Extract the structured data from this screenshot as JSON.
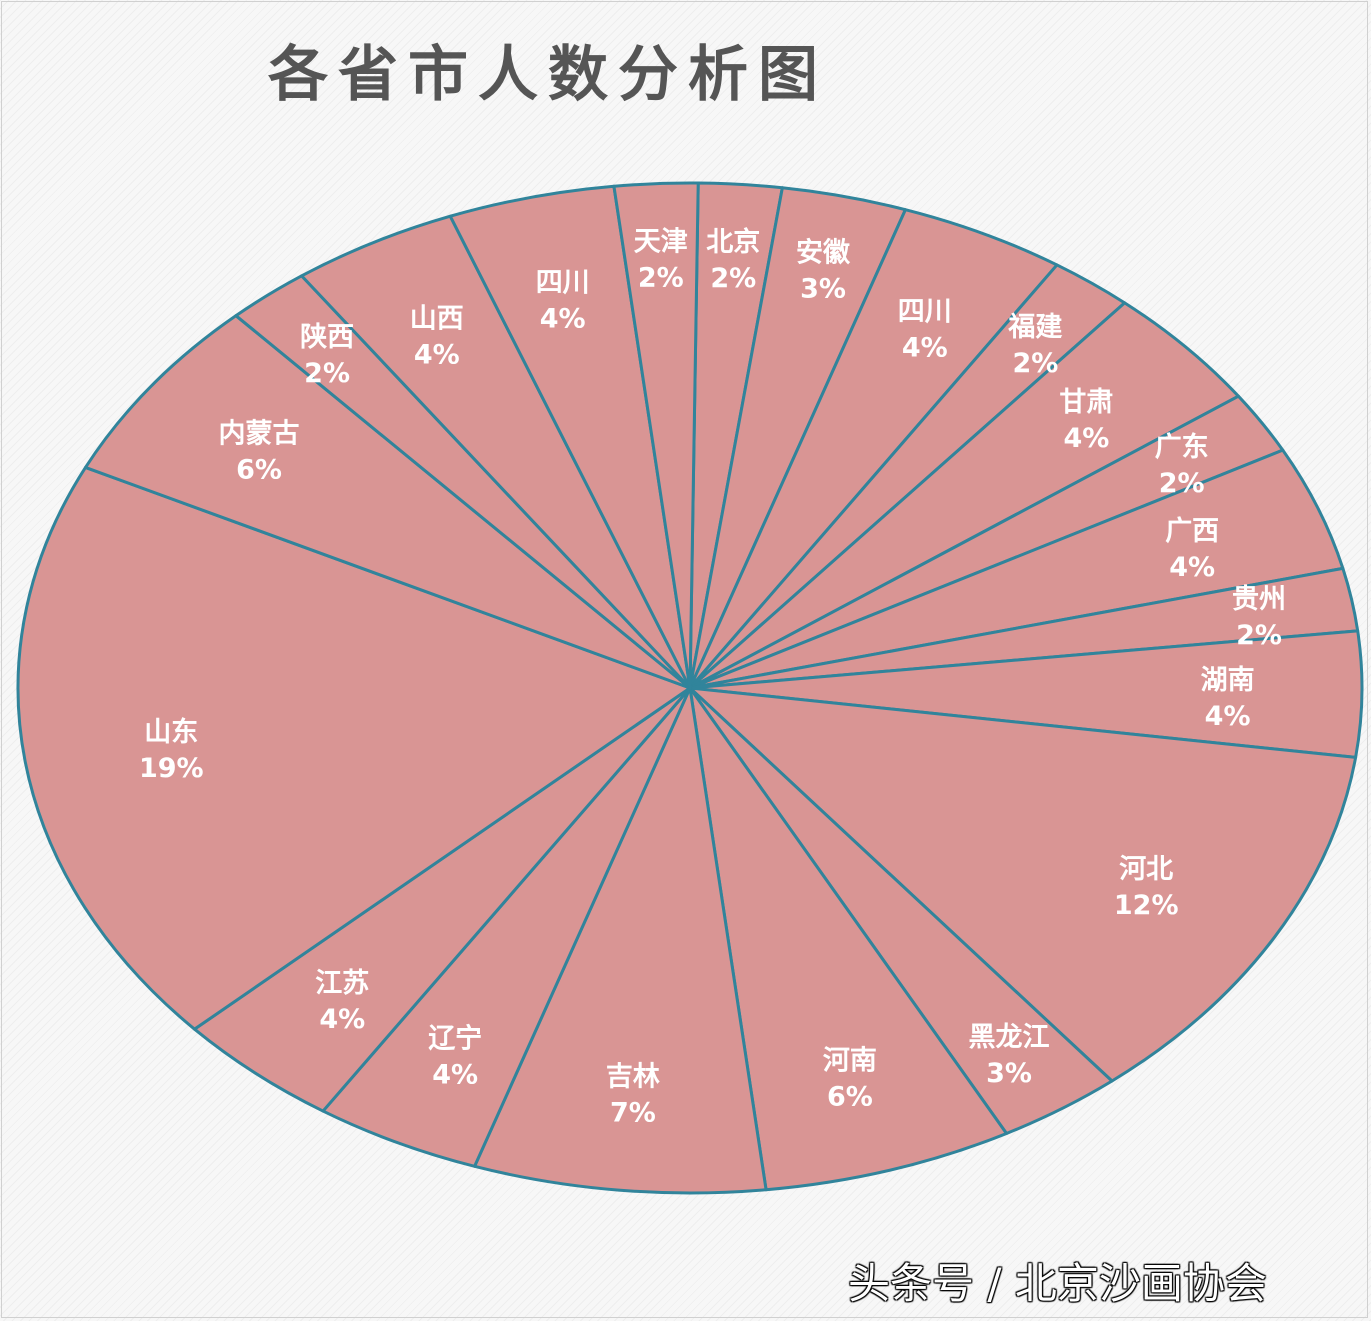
{
  "title": "各省市人数分析图",
  "watermark": "头条号 / 北京沙画协会",
  "colors": {
    "slice_fill": "#d99594",
    "slice_stroke": "#31849b",
    "label": "#ffffff",
    "title": "#555555"
  },
  "chart_data": {
    "type": "pie",
    "title": "各省市人数分析图",
    "legend": "none",
    "slices": [
      {
        "name": "北京",
        "pct_label": "2%",
        "value": 2
      },
      {
        "name": "安徽",
        "pct_label": "3%",
        "value": 3
      },
      {
        "name": "四川",
        "pct_label": "4%",
        "value": 4
      },
      {
        "name": "福建",
        "pct_label": "2%",
        "value": 2
      },
      {
        "name": "甘肃",
        "pct_label": "4%",
        "value": 4
      },
      {
        "name": "广东",
        "pct_label": "2%",
        "value": 2
      },
      {
        "name": "广西",
        "pct_label": "4%",
        "value": 4
      },
      {
        "name": "贵州",
        "pct_label": "2%",
        "value": 2
      },
      {
        "name": "湖南",
        "pct_label": "4%",
        "value": 4
      },
      {
        "name": "河北",
        "pct_label": "12%",
        "value": 12
      },
      {
        "name": "黑龙江",
        "pct_label": "3%",
        "value": 3
      },
      {
        "name": "河南",
        "pct_label": "6%",
        "value": 6
      },
      {
        "name": "吉林",
        "pct_label": "7%",
        "value": 7
      },
      {
        "name": "辽宁",
        "pct_label": "4%",
        "value": 4
      },
      {
        "name": "江苏",
        "pct_label": "4%",
        "value": 4
      },
      {
        "name": "山东",
        "pct_label": "19%",
        "value": 19
      },
      {
        "name": "内蒙古",
        "pct_label": "6%",
        "value": 6
      },
      {
        "name": "陕西",
        "pct_label": "2%",
        "value": 2
      },
      {
        "name": "山西",
        "pct_label": "4%",
        "value": 4
      },
      {
        "name": "四川",
        "pct_label": "4%",
        "value": 4
      },
      {
        "name": "天津",
        "pct_label": "2%",
        "value": 2
      }
    ]
  }
}
